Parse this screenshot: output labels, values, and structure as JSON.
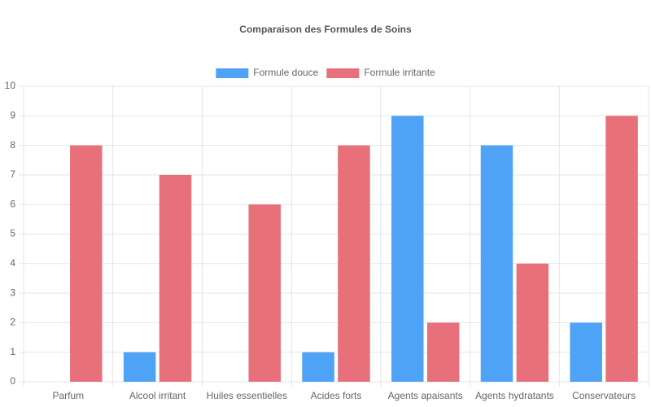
{
  "chart_data": {
    "type": "bar",
    "title": "Comparaison des Formules de Soins",
    "categories": [
      "Parfum",
      "Alcool irritant",
      "Huiles essentielles",
      "Acides forts",
      "Agents apaisants",
      "Agents hydratants",
      "Conservateurs"
    ],
    "series": [
      {
        "name": "Formule douce",
        "color": "#4ea3f6",
        "values": [
          0,
          1,
          0,
          1,
          9,
          8,
          2
        ]
      },
      {
        "name": "Formule irritante",
        "color": "#e8707b",
        "values": [
          8,
          7,
          6,
          8,
          2,
          4,
          9
        ]
      }
    ],
    "ylim": [
      0,
      10
    ],
    "yticks": [
      0,
      1,
      2,
      3,
      4,
      5,
      6,
      7,
      8,
      9,
      10
    ],
    "grid": true,
    "legend": "top"
  }
}
